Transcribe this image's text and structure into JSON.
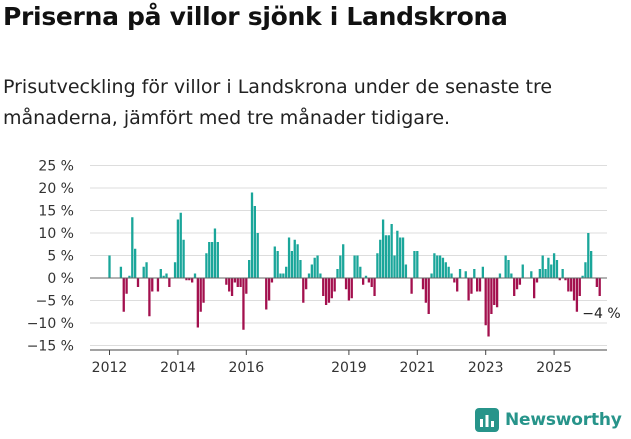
{
  "header": {
    "title": "Priserna på villor sjönk i Landskrona",
    "subtitle": "Prisutveckling för villor i Landskrona under de senaste tre månaderna, jämfört med tre månader tidigare."
  },
  "brand": {
    "name": "Newsworthy",
    "icon": "newsworthy-logo-icon",
    "color": "#27948a"
  },
  "chart_data": {
    "type": "bar",
    "x_start": "2012-01",
    "frequency": "monthly",
    "x_ticks": [
      {
        "value": "2012-01",
        "label": "2012"
      },
      {
        "value": "2014-01",
        "label": "2014"
      },
      {
        "value": "2016-01",
        "label": "2016"
      },
      {
        "value": "2019-01",
        "label": "2019"
      },
      {
        "value": "2021-01",
        "label": "2021"
      },
      {
        "value": "2023-01",
        "label": "2023"
      },
      {
        "value": "2025-01",
        "label": "2025"
      }
    ],
    "y_ticks": [
      {
        "value": 25,
        "label": "25 %"
      },
      {
        "value": 20,
        "label": "20 %"
      },
      {
        "value": 15,
        "label": "15 %"
      },
      {
        "value": 10,
        "label": "10 %"
      },
      {
        "value": 5,
        "label": "5 %"
      },
      {
        "value": 0,
        "label": "0 %"
      },
      {
        "value": -5,
        "label": "−5 %"
      },
      {
        "value": -10,
        "label": "−10 %"
      },
      {
        "value": -15,
        "label": "−15 %"
      }
    ],
    "ylim": [
      -15,
      25
    ],
    "grid": "horizontal",
    "colors": {
      "positive": "#1aa69a",
      "negative": "#a3104e",
      "grid": "#dddddd",
      "axis": "#444444"
    },
    "annotation": {
      "label": "−4 %",
      "value": -4
    },
    "values": [
      5,
      0,
      0,
      0,
      2.5,
      -7.5,
      -3.5,
      0.5,
      13.5,
      6.5,
      -2,
      0,
      2.5,
      3.5,
      -8.5,
      -3,
      0,
      -3,
      2,
      0.5,
      1,
      -2,
      0,
      3.5,
      13,
      14.5,
      8.5,
      -0.5,
      -0.5,
      -1,
      1,
      -11,
      -7.5,
      -5.5,
      5.5,
      8,
      8,
      11,
      8,
      0,
      0,
      -1.5,
      -3,
      -4,
      -1,
      -2,
      -2,
      -11.5,
      -3.5,
      4,
      19,
      16,
      10,
      0,
      0,
      -7,
      -5,
      -1,
      7,
      6,
      1,
      1,
      2.5,
      9,
      6,
      8.5,
      7.5,
      4,
      -5.5,
      -2.5,
      1,
      3,
      4.5,
      5,
      1,
      -4,
      -6,
      -5.5,
      -4.5,
      -3,
      2,
      5,
      7.5,
      -2.5,
      -5,
      -4.5,
      5,
      5,
      2.5,
      -1.5,
      0.5,
      -1,
      -2,
      -4,
      5.5,
      8.5,
      13,
      9.5,
      9.5,
      12,
      5,
      10.5,
      9,
      9,
      3,
      0,
      -3.5,
      6,
      6,
      0,
      -2.5,
      -5.5,
      -8,
      1,
      5.5,
      5,
      5,
      4.5,
      3.5,
      2.5,
      1,
      -1,
      -3,
      2,
      0,
      1.5,
      -5,
      -3.5,
      2,
      -3,
      -3,
      2.5,
      -10.5,
      -13,
      -8,
      -6,
      -6.5,
      1,
      0,
      5,
      4,
      1,
      -4,
      -2.5,
      -1.5,
      3,
      0,
      0,
      1.5,
      -4.5,
      -1,
      2,
      5,
      2,
      4.5,
      3,
      5.5,
      4,
      -0.5,
      2,
      -0.5,
      -3,
      -3,
      -5,
      -7.5,
      -4,
      0.5,
      3.5,
      10,
      6,
      0,
      -2,
      -4
    ]
  }
}
